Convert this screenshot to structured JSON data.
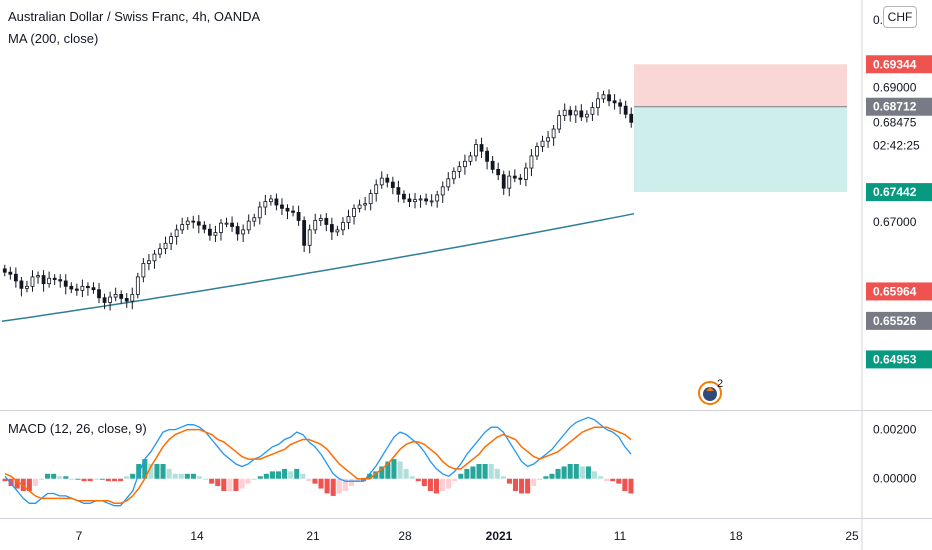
{
  "header": {
    "title": "Australian Dollar / Swiss Franc, 4h, OANDA",
    "ma_legend": "MA (200, close)",
    "currency": "CHF"
  },
  "macd_legend": "MACD (12, 26, close, 9)",
  "event_badge": {
    "count": "2",
    "icon": "dividend-icon"
  },
  "colors": {
    "up": "#26a69a",
    "down": "#ef5350",
    "candle": "#131722",
    "ma": "#2f7f9a",
    "macd": "#2196f3",
    "signal": "#ff6d00",
    "stop_zone": "#f8d7d6",
    "target_zone": "#cdeeea"
  },
  "chart_data": [
    {
      "type": "candlestick",
      "title": "Australian Dollar / Swiss Franc, 4h, OANDA",
      "ylim": [
        0.642,
        0.703
      ],
      "y_ticks": [
        "0.70000",
        "0.69000",
        "0.68475",
        "0.67000"
      ],
      "x_ticks": [
        "7",
        "14",
        "21",
        "28",
        "2021",
        "11",
        "18",
        "25"
      ],
      "price_labels": [
        {
          "value": 0.69344,
          "text": "0.69344",
          "color": "#ef5350"
        },
        {
          "value": 0.68712,
          "text": "0.68712",
          "color": "#787b86"
        },
        {
          "value": 0.68475,
          "text": "0.68475",
          "countdown": "02:42:25",
          "color": "#ffffff"
        },
        {
          "value": 0.67442,
          "text": "0.67442",
          "color": "#089981"
        },
        {
          "value": 0.65964,
          "text": "0.65964",
          "color": "#ef5350"
        },
        {
          "value": 0.65526,
          "text": "0.65526",
          "color": "#787b86"
        },
        {
          "value": 0.64953,
          "text": "0.64953",
          "color": "#089981"
        }
      ],
      "close_series": [
        0.6625,
        0.6622,
        0.6612,
        0.6601,
        0.6604,
        0.6618,
        0.662,
        0.6608,
        0.6616,
        0.6614,
        0.6612,
        0.6604,
        0.66,
        0.6598,
        0.6604,
        0.6602,
        0.6599,
        0.6587,
        0.658,
        0.6588,
        0.6592,
        0.6586,
        0.6582,
        0.6592,
        0.6618,
        0.6638,
        0.6642,
        0.6652,
        0.666,
        0.6668,
        0.6678,
        0.6688,
        0.6696,
        0.6701,
        0.67,
        0.6695,
        0.6689,
        0.668,
        0.6684,
        0.6698,
        0.6698,
        0.6693,
        0.6682,
        0.6688,
        0.6701,
        0.6706,
        0.6722,
        0.673,
        0.6734,
        0.6725,
        0.672,
        0.6716,
        0.6714,
        0.6702,
        0.6665,
        0.6688,
        0.6702,
        0.6705,
        0.6696,
        0.6685,
        0.6688,
        0.6699,
        0.6708,
        0.672,
        0.6725,
        0.6727,
        0.6742,
        0.6755,
        0.6765,
        0.6759,
        0.6751,
        0.6741,
        0.6734,
        0.673,
        0.6733,
        0.6734,
        0.6731,
        0.6731,
        0.674,
        0.6752,
        0.6764,
        0.6775,
        0.6782,
        0.679,
        0.6798,
        0.6815,
        0.6805,
        0.679,
        0.6778,
        0.677,
        0.675,
        0.6768,
        0.6765,
        0.6763,
        0.678,
        0.6798,
        0.6812,
        0.682,
        0.6825,
        0.6838,
        0.6858,
        0.6866,
        0.6859,
        0.6865,
        0.6856,
        0.686,
        0.687,
        0.6883,
        0.6889,
        0.688,
        0.6877,
        0.6872,
        0.686,
        0.6848
      ],
      "ma": {
        "name": "MA (200, close)",
        "start": 0.6552,
        "end": 0.6712
      },
      "position_tool": {
        "entry": 0.68712,
        "stop": 0.69344,
        "target": 0.67442
      }
    },
    {
      "type": "macd",
      "title": "MACD (12, 26, close, 9)",
      "ylim": [
        -0.0016,
        0.0028
      ],
      "y_ticks": [
        "0.00200",
        "0.00000"
      ],
      "macd_values": [
        0.0001,
        -0.0002,
        -0.0005,
        -0.0008,
        -0.001,
        -0.001,
        -0.0008,
        -0.0006,
        -0.0006,
        -0.0007,
        -0.0007,
        -0.0008,
        -0.0009,
        -0.001,
        -0.001,
        -0.0009,
        -0.0009,
        -0.001,
        -0.0011,
        -0.0011,
        -0.0008,
        -0.0005,
        0.0002,
        0.0008,
        0.0011,
        0.0015,
        0.0019,
        0.002,
        0.002,
        0.0021,
        0.0022,
        0.0022,
        0.0021,
        0.0019,
        0.0016,
        0.0013,
        0.001,
        0.0008,
        0.0006,
        0.0005,
        0.0006,
        0.0008,
        0.0009,
        0.0011,
        0.0013,
        0.0014,
        0.0016,
        0.0017,
        0.0019,
        0.0018,
        0.0015,
        0.0013,
        0.001,
        0.0006,
        0.0002,
        0.0,
        -0.0001,
        -0.0001,
        -0.0001,
        -0.0001,
        0.0002,
        0.0005,
        0.0009,
        0.0013,
        0.0017,
        0.0019,
        0.0018,
        0.0016,
        0.0014,
        0.0011,
        0.0007,
        0.0004,
        0.0002,
        0.0001,
        0.0003,
        0.0006,
        0.001,
        0.0013,
        0.0016,
        0.0019,
        0.0021,
        0.0021,
        0.0019,
        0.0015,
        0.0011,
        0.0007,
        0.0005,
        0.0006,
        0.0008,
        0.001,
        0.0012,
        0.0015,
        0.0018,
        0.0021,
        0.0023,
        0.0024,
        0.0025,
        0.0024,
        0.0022,
        0.002,
        0.0019,
        0.0017,
        0.0013,
        0.001
      ],
      "signal_values": [
        0.0002,
        0.0001,
        -0.0001,
        -0.0003,
        -0.0005,
        -0.0007,
        -0.0008,
        -0.0008,
        -0.0008,
        -0.0008,
        -0.0008,
        -0.0008,
        -0.0009,
        -0.0009,
        -0.0009,
        -0.0009,
        -0.0009,
        -0.0009,
        -0.001,
        -0.001,
        -0.0009,
        -0.0007,
        -0.0004,
        0.0,
        0.0005,
        0.0009,
        0.0013,
        0.0016,
        0.0018,
        0.0019,
        0.002,
        0.002,
        0.002,
        0.0019,
        0.0018,
        0.0016,
        0.0015,
        0.0013,
        0.0011,
        0.0009,
        0.0008,
        0.0008,
        0.0008,
        0.0009,
        0.001,
        0.0011,
        0.0012,
        0.0014,
        0.0015,
        0.0016,
        0.0016,
        0.0015,
        0.0014,
        0.0012,
        0.0009,
        0.0006,
        0.0004,
        0.0002,
        0.0,
        0.0,
        0.0,
        0.0002,
        0.0004,
        0.0006,
        0.0009,
        0.0012,
        0.0014,
        0.0015,
        0.0015,
        0.0014,
        0.0012,
        0.001,
        0.0007,
        0.0005,
        0.0004,
        0.0004,
        0.0006,
        0.0008,
        0.001,
        0.0013,
        0.0015,
        0.0017,
        0.0018,
        0.0017,
        0.0016,
        0.0013,
        0.0011,
        0.0009,
        0.0008,
        0.0009,
        0.001,
        0.0011,
        0.0013,
        0.0015,
        0.0017,
        0.0019,
        0.002,
        0.0021,
        0.0021,
        0.0021,
        0.002,
        0.0019,
        0.0018,
        0.0016
      ]
    }
  ]
}
